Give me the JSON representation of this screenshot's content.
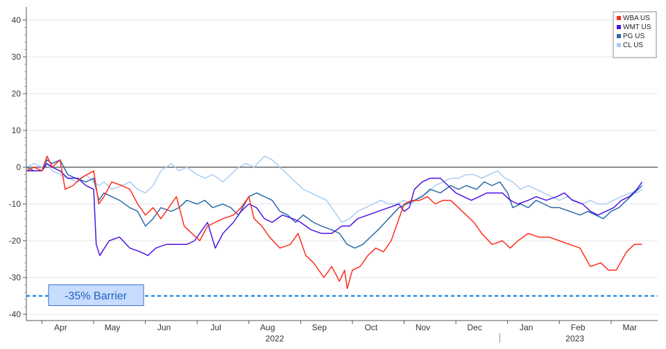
{
  "chart_data": {
    "type": "line",
    "title": "",
    "xlabel": "",
    "ylabel": "",
    "ylim": [
      -40,
      40
    ],
    "y_ticks": [
      40,
      30,
      20,
      10,
      0,
      -10,
      -20,
      -30,
      -40
    ],
    "x_tick_labels": [
      "Apr",
      "May",
      "Jun",
      "Jul",
      "Aug",
      "Sep",
      "Oct",
      "Nov",
      "Dec",
      "Jan",
      "Feb",
      "Mar"
    ],
    "x_tick_months": [
      0,
      1,
      2,
      3,
      4,
      5,
      6,
      7,
      8,
      9,
      10,
      11
    ],
    "xlim_months": [
      -0.3,
      11.9
    ],
    "year_labels": [
      {
        "label": "2022",
        "month": 4.5
      },
      {
        "label": "2023",
        "month": 10.3
      }
    ],
    "year_divider_month": 8.85,
    "zero_line": true,
    "grid": "horizontal",
    "legend_position": "top-right",
    "legend": [
      "WBA US",
      "WMT US",
      "PG US",
      "CL US"
    ],
    "barrier": {
      "label": "-35% Barrier",
      "value": -35
    },
    "series": [
      {
        "name": "WBA US",
        "color": "#ff2a1a",
        "points": [
          [
            -0.3,
            -1
          ],
          [
            -0.15,
            0
          ],
          [
            0,
            -1
          ],
          [
            0.1,
            3
          ],
          [
            0.2,
            0
          ],
          [
            0.35,
            2
          ],
          [
            0.45,
            -6
          ],
          [
            0.6,
            -5
          ],
          [
            0.75,
            -3
          ],
          [
            1.0,
            -1
          ],
          [
            1.1,
            -10
          ],
          [
            1.2,
            -8
          ],
          [
            1.35,
            -4
          ],
          [
            1.55,
            -5
          ],
          [
            1.7,
            -6
          ],
          [
            1.85,
            -10
          ],
          [
            2.0,
            -13
          ],
          [
            2.15,
            -11
          ],
          [
            2.3,
            -14
          ],
          [
            2.5,
            -10
          ],
          [
            2.6,
            -8
          ],
          [
            2.75,
            -16
          ],
          [
            2.9,
            -18
          ],
          [
            3.05,
            -20
          ],
          [
            3.2,
            -16
          ],
          [
            3.35,
            -15
          ],
          [
            3.5,
            -14
          ],
          [
            3.7,
            -13
          ],
          [
            3.85,
            -11
          ],
          [
            4.0,
            -8
          ],
          [
            4.1,
            -14
          ],
          [
            4.25,
            -16
          ],
          [
            4.4,
            -19
          ],
          [
            4.6,
            -22
          ],
          [
            4.8,
            -21
          ],
          [
            4.95,
            -18
          ],
          [
            5.1,
            -24
          ],
          [
            5.25,
            -26
          ],
          [
            5.45,
            -30
          ],
          [
            5.6,
            -27
          ],
          [
            5.75,
            -31
          ],
          [
            5.85,
            -28
          ],
          [
            5.9,
            -33
          ],
          [
            6.0,
            -28
          ],
          [
            6.15,
            -27
          ],
          [
            6.3,
            -24
          ],
          [
            6.45,
            -22
          ],
          [
            6.6,
            -23
          ],
          [
            6.75,
            -20
          ],
          [
            6.9,
            -14
          ],
          [
            7.0,
            -10
          ],
          [
            7.15,
            -9
          ],
          [
            7.3,
            -9
          ],
          [
            7.45,
            -8
          ],
          [
            7.6,
            -10
          ],
          [
            7.75,
            -9
          ],
          [
            7.9,
            -9
          ],
          [
            8.05,
            -11
          ],
          [
            8.2,
            -13
          ],
          [
            8.35,
            -15
          ],
          [
            8.5,
            -18
          ],
          [
            8.7,
            -21
          ],
          [
            8.9,
            -20
          ],
          [
            9.05,
            -22
          ],
          [
            9.2,
            -20
          ],
          [
            9.4,
            -18
          ],
          [
            9.6,
            -19
          ],
          [
            9.8,
            -19
          ],
          [
            10.0,
            -20
          ],
          [
            10.2,
            -21
          ],
          [
            10.4,
            -22
          ],
          [
            10.6,
            -27
          ],
          [
            10.8,
            -26
          ],
          [
            10.95,
            -28
          ],
          [
            11.1,
            -28
          ],
          [
            11.3,
            -23
          ],
          [
            11.45,
            -21
          ],
          [
            11.6,
            -21
          ]
        ]
      },
      {
        "name": "WMT US",
        "color": "#4a13e6",
        "points": [
          [
            -0.3,
            -1
          ],
          [
            -0.15,
            -1
          ],
          [
            0,
            -1
          ],
          [
            0.1,
            1
          ],
          [
            0.2,
            0
          ],
          [
            0.35,
            -1
          ],
          [
            0.5,
            -3
          ],
          [
            0.7,
            -3
          ],
          [
            0.85,
            -5
          ],
          [
            1.0,
            -6
          ],
          [
            1.05,
            -21
          ],
          [
            1.12,
            -24
          ],
          [
            1.3,
            -20
          ],
          [
            1.5,
            -19
          ],
          [
            1.7,
            -22
          ],
          [
            1.9,
            -23
          ],
          [
            2.05,
            -24
          ],
          [
            2.2,
            -22
          ],
          [
            2.4,
            -21
          ],
          [
            2.6,
            -21
          ],
          [
            2.8,
            -21
          ],
          [
            2.95,
            -20
          ],
          [
            3.1,
            -17
          ],
          [
            3.2,
            -15
          ],
          [
            3.35,
            -22
          ],
          [
            3.5,
            -18
          ],
          [
            3.7,
            -15
          ],
          [
            3.85,
            -12
          ],
          [
            4.0,
            -10
          ],
          [
            4.15,
            -11
          ],
          [
            4.3,
            -14
          ],
          [
            4.45,
            -15
          ],
          [
            4.65,
            -13
          ],
          [
            4.85,
            -14
          ],
          [
            5.0,
            -15
          ],
          [
            5.2,
            -17
          ],
          [
            5.4,
            -18
          ],
          [
            5.6,
            -18
          ],
          [
            5.8,
            -16
          ],
          [
            5.95,
            -16
          ],
          [
            6.1,
            -14
          ],
          [
            6.3,
            -13
          ],
          [
            6.5,
            -12
          ],
          [
            6.7,
            -11
          ],
          [
            6.9,
            -10
          ],
          [
            7.0,
            -12
          ],
          [
            7.1,
            -11
          ],
          [
            7.2,
            -6
          ],
          [
            7.35,
            -4
          ],
          [
            7.5,
            -3
          ],
          [
            7.7,
            -3
          ],
          [
            7.85,
            -5
          ],
          [
            8.0,
            -7
          ],
          [
            8.15,
            -8
          ],
          [
            8.3,
            -9
          ],
          [
            8.45,
            -8
          ],
          [
            8.6,
            -7
          ],
          [
            8.75,
            -7
          ],
          [
            8.9,
            -7
          ],
          [
            9.05,
            -9
          ],
          [
            9.2,
            -10
          ],
          [
            9.4,
            -9
          ],
          [
            9.55,
            -8
          ],
          [
            9.75,
            -9
          ],
          [
            9.95,
            -8
          ],
          [
            10.1,
            -7
          ],
          [
            10.25,
            -9
          ],
          [
            10.45,
            -10
          ],
          [
            10.6,
            -12
          ],
          [
            10.75,
            -13
          ],
          [
            10.9,
            -12
          ],
          [
            11.05,
            -11
          ],
          [
            11.2,
            -9
          ],
          [
            11.35,
            -8
          ],
          [
            11.5,
            -6
          ],
          [
            11.6,
            -4
          ]
        ]
      },
      {
        "name": "PG US",
        "color": "#2a6aa8",
        "points": [
          [
            -0.3,
            0
          ],
          [
            -0.15,
            -1
          ],
          [
            0,
            -1
          ],
          [
            0.1,
            2
          ],
          [
            0.2,
            1
          ],
          [
            0.35,
            2
          ],
          [
            0.5,
            -2
          ],
          [
            0.65,
            -3
          ],
          [
            0.85,
            -4
          ],
          [
            1.0,
            -3
          ],
          [
            1.1,
            -9
          ],
          [
            1.2,
            -7
          ],
          [
            1.35,
            -8
          ],
          [
            1.5,
            -9
          ],
          [
            1.7,
            -11
          ],
          [
            1.85,
            -12
          ],
          [
            2.0,
            -16
          ],
          [
            2.15,
            -14
          ],
          [
            2.3,
            -11
          ],
          [
            2.5,
            -12
          ],
          [
            2.65,
            -11
          ],
          [
            2.8,
            -9
          ],
          [
            3.0,
            -10
          ],
          [
            3.15,
            -9
          ],
          [
            3.3,
            -11
          ],
          [
            3.5,
            -10
          ],
          [
            3.65,
            -11
          ],
          [
            3.8,
            -13
          ],
          [
            4.0,
            -8
          ],
          [
            4.15,
            -7
          ],
          [
            4.3,
            -8
          ],
          [
            4.45,
            -9
          ],
          [
            4.6,
            -12
          ],
          [
            4.75,
            -13
          ],
          [
            4.9,
            -15
          ],
          [
            5.05,
            -13
          ],
          [
            5.25,
            -15
          ],
          [
            5.4,
            -16
          ],
          [
            5.6,
            -17
          ],
          [
            5.75,
            -18
          ],
          [
            5.9,
            -21
          ],
          [
            6.05,
            -22
          ],
          [
            6.2,
            -21
          ],
          [
            6.35,
            -19
          ],
          [
            6.5,
            -17
          ],
          [
            6.7,
            -14
          ],
          [
            6.9,
            -11
          ],
          [
            7.05,
            -10
          ],
          [
            7.2,
            -9
          ],
          [
            7.35,
            -8
          ],
          [
            7.5,
            -6
          ],
          [
            7.7,
            -7
          ],
          [
            7.9,
            -5
          ],
          [
            8.05,
            -6
          ],
          [
            8.2,
            -5
          ],
          [
            8.4,
            -6
          ],
          [
            8.55,
            -4
          ],
          [
            8.7,
            -5
          ],
          [
            8.85,
            -4
          ],
          [
            9.0,
            -7
          ],
          [
            9.1,
            -11
          ],
          [
            9.25,
            -10
          ],
          [
            9.4,
            -11
          ],
          [
            9.55,
            -9
          ],
          [
            9.7,
            -10
          ],
          [
            9.85,
            -11
          ],
          [
            10.0,
            -11
          ],
          [
            10.2,
            -12
          ],
          [
            10.4,
            -13
          ],
          [
            10.55,
            -12
          ],
          [
            10.7,
            -13
          ],
          [
            10.85,
            -14
          ],
          [
            11.0,
            -12
          ],
          [
            11.15,
            -11
          ],
          [
            11.3,
            -9
          ],
          [
            11.45,
            -7
          ],
          [
            11.6,
            -5
          ]
        ]
      },
      {
        "name": "CL US",
        "color": "#a9cdf2",
        "points": [
          [
            -0.3,
            0
          ],
          [
            -0.15,
            1
          ],
          [
            0,
            0
          ],
          [
            0.1,
            1
          ],
          [
            0.2,
            -1
          ],
          [
            0.35,
            -2
          ],
          [
            0.5,
            -3
          ],
          [
            0.7,
            -4
          ],
          [
            0.85,
            -2
          ],
          [
            1.0,
            -4
          ],
          [
            1.1,
            -5
          ],
          [
            1.2,
            -4
          ],
          [
            1.35,
            -6
          ],
          [
            1.55,
            -5
          ],
          [
            1.7,
            -4
          ],
          [
            1.85,
            -6
          ],
          [
            2.0,
            -7
          ],
          [
            2.15,
            -5
          ],
          [
            2.3,
            -1
          ],
          [
            2.5,
            1
          ],
          [
            2.65,
            -1
          ],
          [
            2.8,
            0
          ],
          [
            3.0,
            -2
          ],
          [
            3.15,
            -3
          ],
          [
            3.3,
            -2
          ],
          [
            3.5,
            -4
          ],
          [
            3.65,
            -2
          ],
          [
            3.8,
            0
          ],
          [
            3.95,
            1
          ],
          [
            4.1,
            0
          ],
          [
            4.3,
            3
          ],
          [
            4.45,
            2
          ],
          [
            4.6,
            0
          ],
          [
            4.75,
            -2
          ],
          [
            4.9,
            -4
          ],
          [
            5.05,
            -6
          ],
          [
            5.2,
            -7
          ],
          [
            5.35,
            -8
          ],
          [
            5.5,
            -9
          ],
          [
            5.65,
            -12
          ],
          [
            5.8,
            -15
          ],
          [
            5.95,
            -14
          ],
          [
            6.1,
            -12
          ],
          [
            6.25,
            -11
          ],
          [
            6.4,
            -10
          ],
          [
            6.55,
            -9
          ],
          [
            6.7,
            -10
          ],
          [
            6.85,
            -10
          ],
          [
            7.0,
            -9
          ],
          [
            7.15,
            -10
          ],
          [
            7.3,
            -8
          ],
          [
            7.45,
            -7
          ],
          [
            7.6,
            -5
          ],
          [
            7.75,
            -4
          ],
          [
            7.9,
            -3
          ],
          [
            8.05,
            -3
          ],
          [
            8.2,
            -2
          ],
          [
            8.35,
            -2
          ],
          [
            8.5,
            -3
          ],
          [
            8.65,
            -2
          ],
          [
            8.8,
            -1
          ],
          [
            8.95,
            -3
          ],
          [
            9.1,
            -4
          ],
          [
            9.25,
            -6
          ],
          [
            9.4,
            -5
          ],
          [
            9.55,
            -6
          ],
          [
            9.7,
            -7
          ],
          [
            9.85,
            -8
          ],
          [
            10.0,
            -9
          ],
          [
            10.15,
            -8
          ],
          [
            10.3,
            -9
          ],
          [
            10.45,
            -10
          ],
          [
            10.6,
            -9
          ],
          [
            10.75,
            -10
          ],
          [
            10.9,
            -10
          ],
          [
            11.05,
            -9
          ],
          [
            11.2,
            -8
          ],
          [
            11.35,
            -7
          ],
          [
            11.5,
            -7
          ],
          [
            11.6,
            -6
          ]
        ]
      }
    ]
  }
}
